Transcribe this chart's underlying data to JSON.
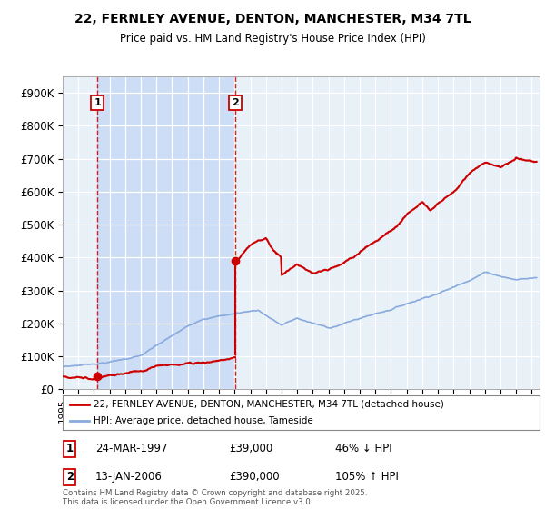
{
  "title": "22, FERNLEY AVENUE, DENTON, MANCHESTER, M34 7TL",
  "subtitle": "Price paid vs. HM Land Registry's House Price Index (HPI)",
  "legend_line1": "22, FERNLEY AVENUE, DENTON, MANCHESTER, M34 7TL (detached house)",
  "legend_line2": "HPI: Average price, detached house, Tameside",
  "annotation1_date": "24-MAR-1997",
  "annotation1_price": "£39,000",
  "annotation1_hpi": "46% ↓ HPI",
  "annotation2_date": "13-JAN-2006",
  "annotation2_price": "£390,000",
  "annotation2_hpi": "105% ↑ HPI",
  "footer": "Contains HM Land Registry data © Crown copyright and database right 2025.\nThis data is licensed under the Open Government Licence v3.0.",
  "price_color": "#cc0000",
  "hpi_color": "#88aadd",
  "shade_color": "#ccddf5",
  "plot_bg_color": "#e8f0f8",
  "sale1_year": 1997.22,
  "sale1_price": 39000,
  "sale2_year": 2006.04,
  "sale2_price": 390000,
  "ylim_max": 950000,
  "xlim_min": 1995,
  "xlim_max": 2025.5
}
